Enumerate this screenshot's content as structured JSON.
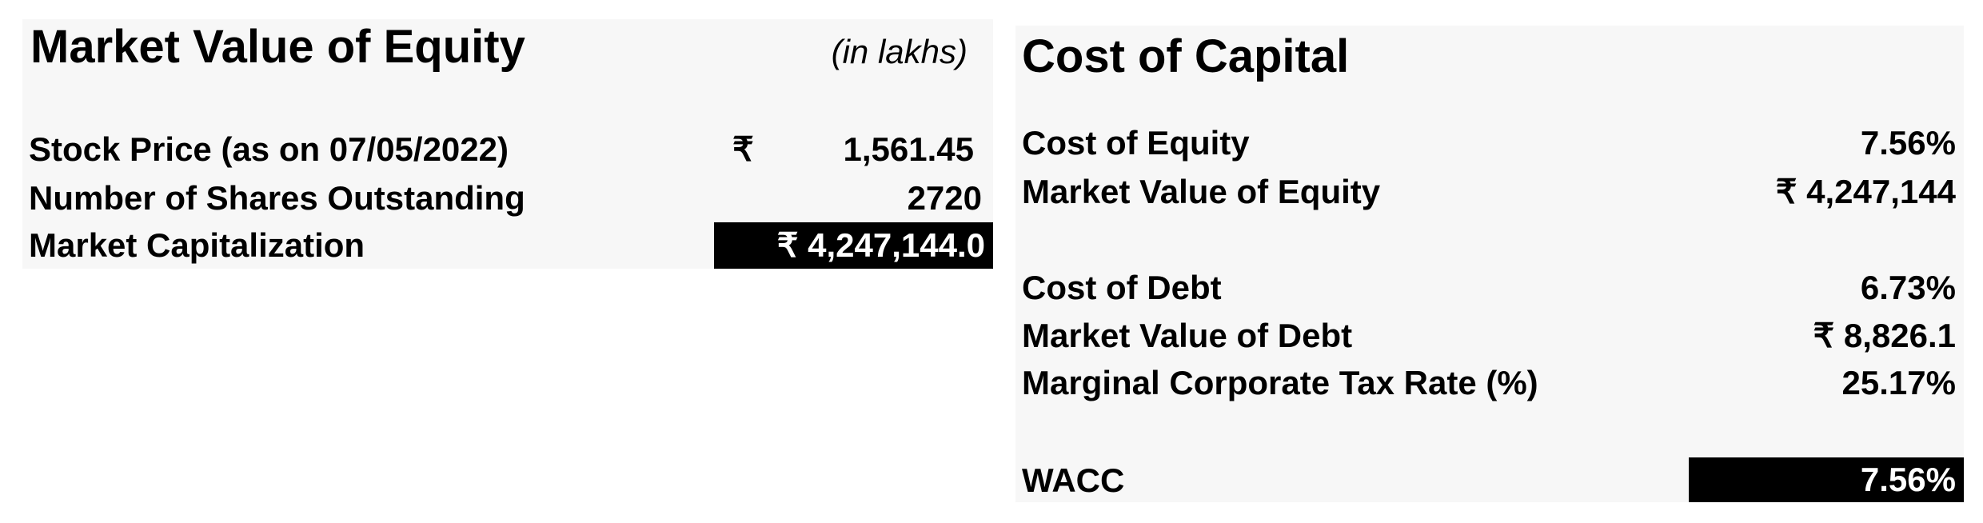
{
  "market_value_of_equity": {
    "title": "Market Value of Equity",
    "units_note": "(in lakhs)",
    "rows": [
      {
        "label": "Stock Price (as on 07/05/2022)",
        "currency": "₹",
        "value": "1,561.45"
      },
      {
        "label": "Number of Shares Outstanding",
        "value": "2720"
      },
      {
        "label": "Market Capitalization",
        "value": "₹ 4,247,144.0"
      }
    ]
  },
  "cost_of_capital": {
    "title": "Cost of Capital",
    "rows": [
      {
        "label": "Cost of Equity",
        "value": "7.56%"
      },
      {
        "label": "Market Value of Equity",
        "value": "₹ 4,247,144"
      },
      {
        "label": "Cost of Debt",
        "value": "6.73%"
      },
      {
        "label": "Market Value of Debt",
        "value": "₹ 8,826.1"
      },
      {
        "label": "Marginal Corporate Tax Rate (%)",
        "value": "25.17%"
      }
    ],
    "wacc": {
      "label": "WACC",
      "value": "7.56%"
    }
  },
  "colors": {
    "panel_bg": "#f7f7f7",
    "highlight_bg": "#000000",
    "highlight_text": "#ffffff"
  }
}
